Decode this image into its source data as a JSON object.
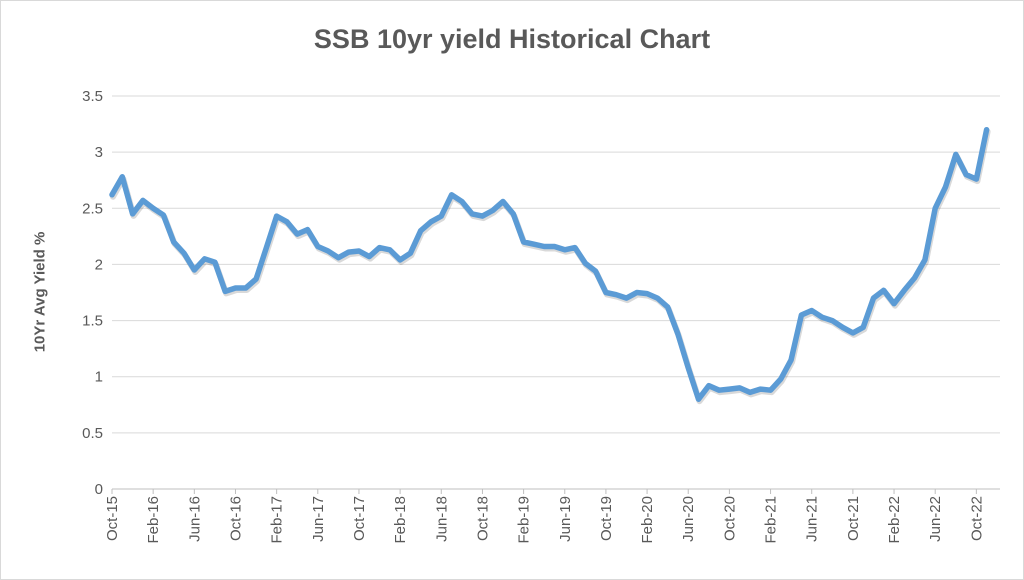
{
  "chart_data": {
    "type": "line",
    "title": "SSB 10yr yield Historical Chart",
    "xlabel": "",
    "ylabel": "10Yr Avg Yield %",
    "ylim": [
      0,
      3.5
    ],
    "yticks": [
      "0",
      "0.5",
      "1",
      "1.5",
      "2",
      "2.5",
      "3",
      "3.5"
    ],
    "grid": true,
    "line_color": "#5b9bd5",
    "xtick_labels": [
      "Oct-15",
      "Feb-16",
      "Jun-16",
      "Oct-16",
      "Feb-17",
      "Jun-17",
      "Oct-17",
      "Feb-18",
      "Jun-18",
      "Oct-18",
      "Feb-19",
      "Jun-19",
      "Oct-19",
      "Feb-20",
      "Jun-20",
      "Oct-20",
      "Feb-21",
      "Jun-21",
      "Oct-21",
      "Feb-22",
      "Jun-22",
      "Oct-22"
    ],
    "x": [
      "Oct-15",
      "Nov-15",
      "Dec-15",
      "Jan-16",
      "Feb-16",
      "Mar-16",
      "Apr-16",
      "May-16",
      "Jun-16",
      "Jul-16",
      "Aug-16",
      "Sep-16",
      "Oct-16",
      "Nov-16",
      "Dec-16",
      "Jan-17",
      "Feb-17",
      "Mar-17",
      "Apr-17",
      "May-17",
      "Jun-17",
      "Jul-17",
      "Aug-17",
      "Sep-17",
      "Oct-17",
      "Nov-17",
      "Dec-17",
      "Jan-18",
      "Feb-18",
      "Mar-18",
      "Apr-18",
      "May-18",
      "Jun-18",
      "Jul-18",
      "Aug-18",
      "Sep-18",
      "Oct-18",
      "Nov-18",
      "Dec-18",
      "Jan-19",
      "Feb-19",
      "Mar-19",
      "Apr-19",
      "May-19",
      "Jun-19",
      "Jul-19",
      "Aug-19",
      "Sep-19",
      "Oct-19",
      "Nov-19",
      "Dec-19",
      "Jan-20",
      "Feb-20",
      "Mar-20",
      "Apr-20",
      "May-20",
      "Jun-20",
      "Jul-20",
      "Aug-20",
      "Sep-20",
      "Oct-20",
      "Nov-20",
      "Dec-20",
      "Jan-21",
      "Feb-21",
      "Mar-21",
      "Apr-21",
      "May-21",
      "Jun-21",
      "Jul-21",
      "Aug-21",
      "Sep-21",
      "Oct-21",
      "Nov-21",
      "Dec-21",
      "Jan-22",
      "Feb-22",
      "Mar-22",
      "Apr-22",
      "May-22",
      "Jun-22",
      "Jul-22",
      "Aug-22",
      "Sep-22",
      "Oct-22",
      "Nov-22"
    ],
    "values": [
      2.62,
      2.78,
      2.45,
      2.57,
      2.5,
      2.44,
      2.2,
      2.1,
      1.95,
      2.05,
      2.02,
      1.76,
      1.79,
      1.79,
      1.87,
      2.15,
      2.43,
      2.38,
      2.27,
      2.31,
      2.16,
      2.12,
      2.06,
      2.11,
      2.12,
      2.07,
      2.15,
      2.13,
      2.04,
      2.1,
      2.3,
      2.38,
      2.43,
      2.62,
      2.56,
      2.45,
      2.43,
      2.48,
      2.56,
      2.45,
      2.2,
      2.18,
      2.16,
      2.16,
      2.13,
      2.15,
      2.01,
      1.94,
      1.75,
      1.73,
      1.7,
      1.75,
      1.74,
      1.7,
      1.62,
      1.38,
      1.08,
      0.8,
      0.92,
      0.88,
      0.89,
      0.9,
      0.86,
      0.89,
      0.88,
      0.98,
      1.15,
      1.55,
      1.59,
      1.53,
      1.5,
      1.44,
      1.39,
      1.44,
      1.7,
      1.77,
      1.65,
      1.77,
      1.88,
      2.04,
      2.5,
      2.69,
      2.98,
      2.8,
      2.76,
      3.2
    ]
  }
}
